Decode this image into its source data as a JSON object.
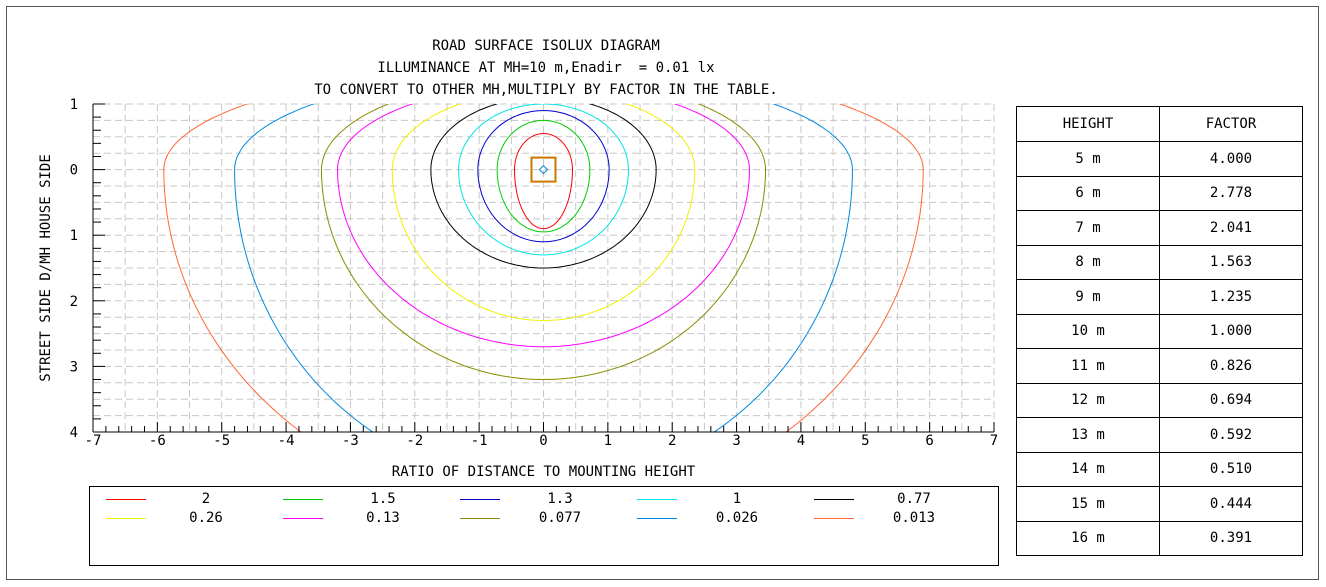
{
  "title_lines": [
    "ROAD SURFACE ISOLUX DIAGRAM",
    "ILLUMINANCE AT MH=10 m,Enadir  = 0.01 lx",
    "TO CONVERT TO OTHER MH,MULTIPLY BY FACTOR IN THE TABLE."
  ],
  "chart_data": {
    "type": "contour",
    "title": "ROAD SURFACE ISOLUX DIAGRAM",
    "xlabel": "RATIO OF DISTANCE TO MOUNTING HEIGHT",
    "ylabel": "STREET SIDE  D/MH  HOUSE SIDE",
    "xlim": [
      -7,
      7
    ],
    "ylim": [
      -1,
      4
    ],
    "y_inverted": true,
    "x_ticks": [
      -7,
      -6,
      -5,
      -4,
      -3,
      -2,
      -1,
      0,
      1,
      2,
      3,
      4,
      5,
      6,
      7
    ],
    "y_tick_labels": [
      "1",
      "0",
      "1",
      "2",
      "3",
      "4"
    ],
    "y_tick_values": [
      -1,
      0,
      1,
      2,
      3,
      4
    ],
    "grid": true,
    "center": [
      0,
      0
    ],
    "levels": [
      {
        "value": "2",
        "color": "#ff0000",
        "rx": 0.45,
        "ry_up": 0.55,
        "ry_down": 0.9
      },
      {
        "value": "1.5",
        "color": "#00cc00",
        "rx": 0.72,
        "ry_up": 0.75,
        "ry_down": 0.95
      },
      {
        "value": "1.3",
        "color": "#0000cc",
        "rx": 1.02,
        "ry_up": 0.9,
        "ry_down": 1.1
      },
      {
        "value": "1",
        "color": "#00e5e5",
        "rx": 1.32,
        "ry_up": 1.0,
        "ry_down": 1.3
      },
      {
        "value": "0.77",
        "color": "#000000",
        "rx": 1.75,
        "ry_up": 1.1,
        "ry_down": 1.5
      },
      {
        "value": "0.26",
        "color": "#f0f000",
        "rx": 2.35,
        "ry_up": 1.2,
        "ry_down": 2.3
      },
      {
        "value": "0.13",
        "color": "#ff00ff",
        "rx": 3.2,
        "ry_up": 1.3,
        "ry_down": 2.7
      },
      {
        "value": "0.077",
        "color": "#8b8b00",
        "rx": 3.45,
        "ry_up": 1.4,
        "ry_down": 3.2
      },
      {
        "value": "0.026",
        "color": "#0088dd",
        "rx": 4.8,
        "ry_up": 1.5,
        "ry_down": 4.8
      },
      {
        "value": "0.013",
        "color": "#ff6633",
        "rx": 5.9,
        "ry_up": 1.6,
        "ry_down": 5.2
      }
    ]
  },
  "legend": [
    {
      "label": "2",
      "color": "#ff0000"
    },
    {
      "label": "1.5",
      "color": "#00cc00"
    },
    {
      "label": "1.3",
      "color": "#0000cc"
    },
    {
      "label": "1",
      "color": "#00e5e5"
    },
    {
      "label": "0.77",
      "color": "#000000"
    },
    {
      "label": "0.26",
      "color": "#f0f000"
    },
    {
      "label": "0.13",
      "color": "#ff00ff"
    },
    {
      "label": "0.077",
      "color": "#8b8b00"
    },
    {
      "label": "0.026",
      "color": "#0088dd"
    },
    {
      "label": "0.013",
      "color": "#ff6633"
    }
  ],
  "factor_table": {
    "headers": [
      "HEIGHT",
      "FACTOR"
    ],
    "rows": [
      [
        "5 m",
        "4.000"
      ],
      [
        "6 m",
        "2.778"
      ],
      [
        "7 m",
        "2.041"
      ],
      [
        "8 m",
        "1.563"
      ],
      [
        "9 m",
        "1.235"
      ],
      [
        "10 m",
        "1.000"
      ],
      [
        "11 m",
        "0.826"
      ],
      [
        "12 m",
        "0.694"
      ],
      [
        "13 m",
        "0.592"
      ],
      [
        "14 m",
        "0.510"
      ],
      [
        "15 m",
        "0.444"
      ],
      [
        "16 m",
        "0.391"
      ]
    ]
  }
}
